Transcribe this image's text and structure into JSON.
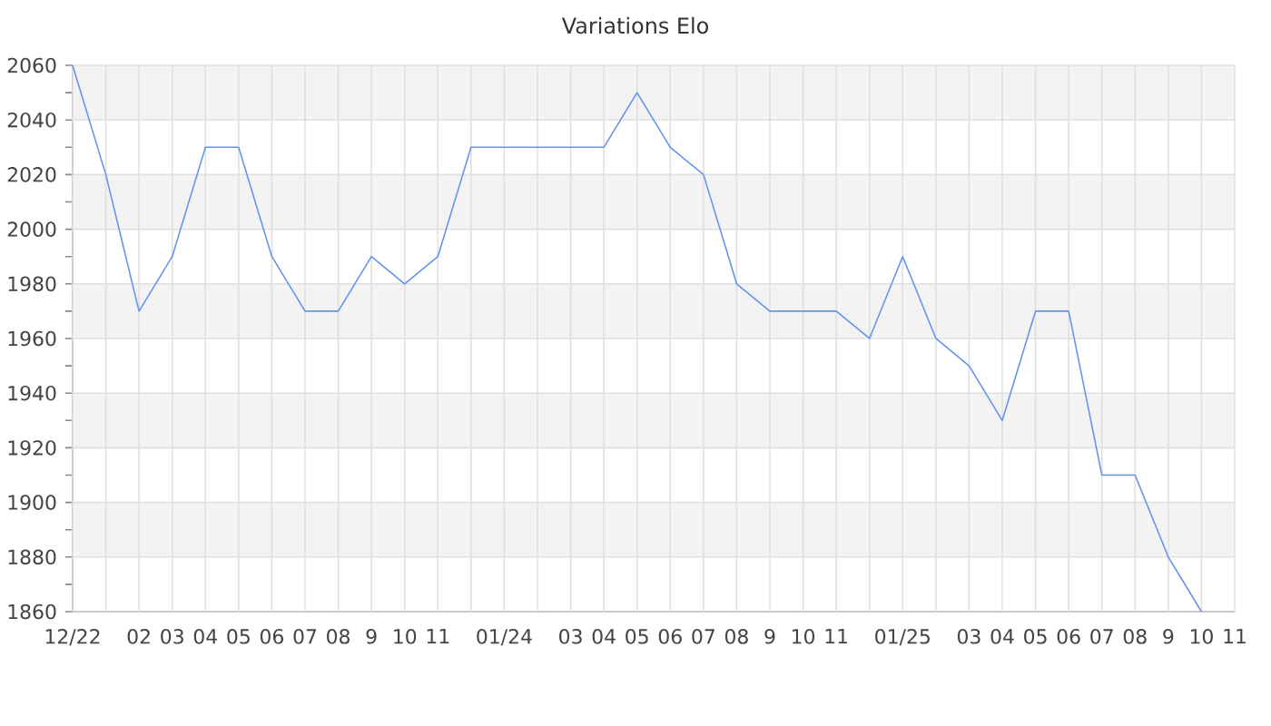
{
  "chart_data": {
    "type": "line",
    "title": "Variations Elo",
    "categories": [
      "12/22",
      null,
      "02",
      "03",
      "04",
      "05",
      "06",
      "07",
      "08",
      "9",
      "10",
      "11",
      null,
      "01/24",
      null,
      "03",
      "04",
      "05",
      "06",
      "07",
      "08",
      "9",
      "10",
      "11",
      null,
      "01/25",
      null,
      "03",
      "04",
      "05",
      "06",
      "07",
      "08",
      "9",
      "10",
      "11"
    ],
    "values": [
      2060,
      2020,
      1970,
      1990,
      2030,
      2030,
      1990,
      1970,
      1970,
      1990,
      1980,
      1990,
      2030,
      2030,
      2030,
      2030,
      2030,
      2050,
      2030,
      2020,
      1980,
      1970,
      1970,
      1970,
      1960,
      1990,
      1960,
      1950,
      1930,
      1970,
      1970,
      1910,
      1910,
      1880,
      1860,
      null
    ],
    "color": "#6495ed",
    "ylim": [
      1860,
      2060
    ],
    "yticks": [
      1860,
      1880,
      1900,
      1920,
      1940,
      1960,
      1980,
      2000,
      2020,
      2040,
      2060
    ],
    "grid": true
  }
}
